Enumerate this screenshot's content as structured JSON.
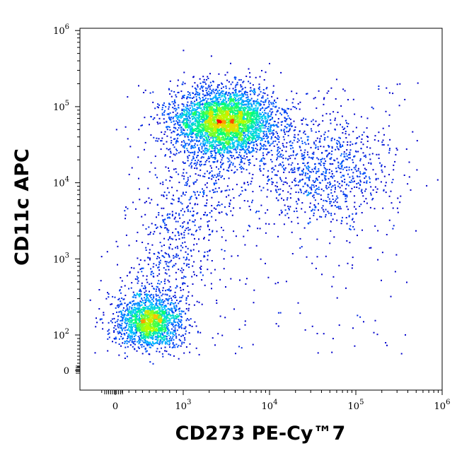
{
  "chart_data": {
    "type": "scatter",
    "style": "flow-cytometry density dot plot (pseudocolor)",
    "title": "",
    "xlabel": "CD273 PE-Cy™7",
    "ylabel": "CD11c APC",
    "x_scale": "biexponential (log decades with linear region around 0)",
    "y_scale": "biexponential (log decades with linear region around 0)",
    "xlim": [
      -300,
      1000000
    ],
    "ylim": [
      -20,
      1000000
    ],
    "x_ticks": [
      {
        "value": 0,
        "base": "0",
        "exp": ""
      },
      {
        "value": 1000,
        "base": "10",
        "exp": "3"
      },
      {
        "value": 10000,
        "base": "10",
        "exp": "4"
      },
      {
        "value": 100000,
        "base": "10",
        "exp": "5"
      },
      {
        "value": 1000000,
        "base": "10",
        "exp": "6"
      }
    ],
    "y_ticks": [
      {
        "value": 0,
        "base": "0",
        "exp": ""
      },
      {
        "value": 100,
        "base": "10",
        "exp": "2"
      },
      {
        "value": 1000,
        "base": "10",
        "exp": "3"
      },
      {
        "value": 10000,
        "base": "10",
        "exp": "4"
      },
      {
        "value": 100000,
        "base": "10",
        "exp": "5"
      },
      {
        "value": 1000000,
        "base": "10",
        "exp": "6"
      }
    ],
    "populations": [
      {
        "center_x": 3000,
        "center_y": 65000,
        "density": "high"
      },
      {
        "center_x": 500,
        "center_y": 150,
        "density": "medium"
      },
      {
        "center_x": 40000,
        "center_y": 15000,
        "density": "low"
      }
    ],
    "grid": false,
    "legend": "none",
    "colors": {
      "low_density": "#0000cc",
      "mid_low": "#00c8ff",
      "mid": "#00ff66",
      "mid_high": "#ffff00",
      "high_density": "#ff0000"
    }
  }
}
